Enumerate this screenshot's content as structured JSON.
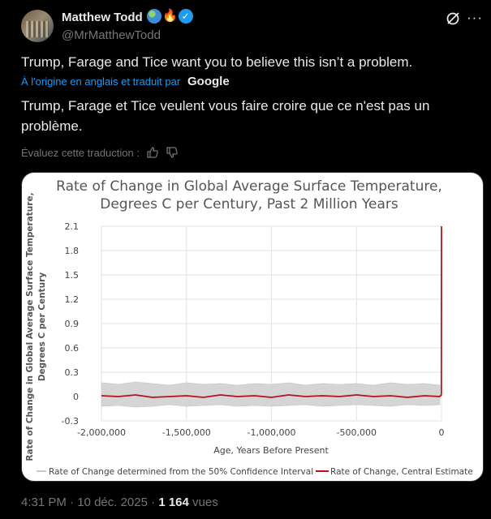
{
  "author": {
    "display_name": "Matthew Todd",
    "handle": "@MrMatthewTodd",
    "badges": [
      "globe-icon",
      "fire-icon",
      "verified-icon"
    ]
  },
  "tweet": {
    "text": "Trump, Farage and Tice want you to believe this isn’t a problem.",
    "translation_note": "À l'origine en anglais et traduit par",
    "translation_brand": "Google",
    "translated_text": "Trump, Farage et Tice veulent vous faire croire que ce n'est pas un problème.",
    "rate_translation": "Évaluez cette traduction :"
  },
  "footer": {
    "time": "4:31 PM",
    "separator": " · ",
    "date": "10 déc. 2025",
    "separator2": " · ",
    "views_count": "1 164",
    "views_label": " vues"
  },
  "colors": {
    "background": "#000000",
    "text": "#e7e9ea",
    "muted": "#71767b",
    "link": "#1d9bf0",
    "series_central": "#b5121b",
    "series_band": "#c8c8c8"
  },
  "chart_data": {
    "type": "line",
    "title": "Rate of Change in Global Average Surface Temperature,",
    "subtitle": "Degrees C per Century, Past 2 Million Years",
    "xlabel": "Age, Years Before Present",
    "ylabel": "Rate of Change in Global Average Surface Temperature,",
    "ylabel2": "Degrees C per Century",
    "xlim": [
      -2000000,
      0
    ],
    "ylim": [
      -0.3,
      2.1
    ],
    "x_ticks": [
      -2000000,
      -1500000,
      -1000000,
      -500000,
      0
    ],
    "x_tick_labels": [
      "-2,000,000",
      "-1,500,000",
      "-1,000,000",
      "-500,000",
      "0"
    ],
    "y_ticks": [
      -0.3,
      0,
      0.3,
      0.6,
      0.9,
      1.2,
      1.5,
      1.8,
      2.1
    ],
    "y_tick_labels": [
      "-0.3",
      "0",
      "0.3",
      "0.6",
      "0.9",
      "1.2",
      "1.5",
      "1.8",
      "2.1"
    ],
    "grid": true,
    "legend_position": "bottom",
    "series": [
      {
        "name": "Rate of Change determined from the 50% Confidence Interval",
        "kind": "band",
        "x": [
          -2000000,
          -1900000,
          -1800000,
          -1700000,
          -1600000,
          -1500000,
          -1400000,
          -1300000,
          -1200000,
          -1100000,
          -1000000,
          -900000,
          -800000,
          -700000,
          -600000,
          -500000,
          -400000,
          -300000,
          -200000,
          -100000,
          -10000
        ],
        "lower": [
          -0.12,
          -0.11,
          -0.13,
          -0.12,
          -0.1,
          -0.12,
          -0.11,
          -0.1,
          -0.12,
          -0.11,
          -0.12,
          -0.11,
          -0.1,
          -0.12,
          -0.11,
          -0.1,
          -0.11,
          -0.12,
          -0.1,
          -0.11,
          -0.1
        ],
        "upper": [
          0.17,
          0.15,
          0.18,
          0.16,
          0.14,
          0.17,
          0.15,
          0.16,
          0.14,
          0.16,
          0.15,
          0.17,
          0.14,
          0.16,
          0.15,
          0.16,
          0.14,
          0.17,
          0.15,
          0.16,
          0.14
        ]
      },
      {
        "name": "Rate of Change, Central Estimate",
        "kind": "line",
        "x": [
          -2000000,
          -1900000,
          -1800000,
          -1700000,
          -1600000,
          -1500000,
          -1400000,
          -1300000,
          -1200000,
          -1100000,
          -1000000,
          -900000,
          -800000,
          -700000,
          -600000,
          -500000,
          -400000,
          -300000,
          -200000,
          -100000,
          -10000,
          -1000,
          0
        ],
        "y": [
          0.01,
          0.0,
          0.02,
          -0.01,
          0.0,
          0.01,
          -0.01,
          0.02,
          0.0,
          0.01,
          -0.01,
          0.02,
          0.0,
          0.01,
          0.0,
          0.02,
          0.0,
          0.01,
          -0.01,
          0.01,
          0.0,
          0.02,
          2.1
        ]
      }
    ]
  }
}
